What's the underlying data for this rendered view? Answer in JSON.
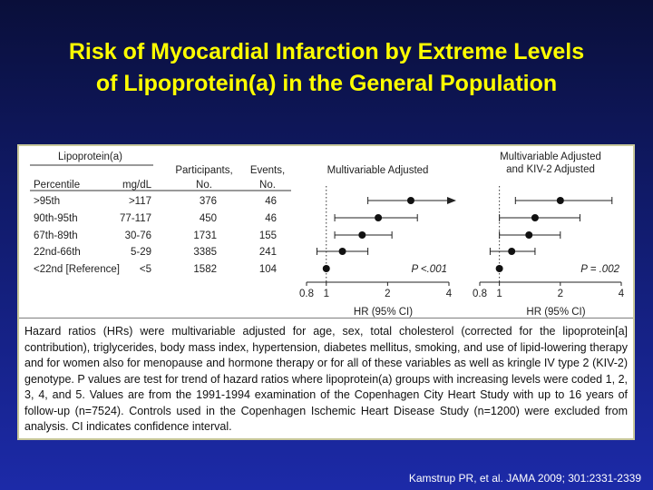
{
  "title_line1": "Risk of Myocardial Infarction by Extreme Levels",
  "title_line2": "of Lipoprotein(a) in the General Population",
  "citation": "Kamstrup PR, et al. JAMA 2009; 301:2331-2339",
  "table": {
    "group_header": "Lipoprotein(a)",
    "col_percentile": "Percentile",
    "col_mgdl": "mg/dL",
    "col_participants": [
      "Participants,",
      "No."
    ],
    "col_events": [
      "Events,",
      "No."
    ],
    "rows": [
      {
        "percentile": ">95th",
        "mgdl": ">117",
        "participants": "376",
        "events": "46"
      },
      {
        "percentile": "90th-95th",
        "mgdl": "77-117",
        "participants": "450",
        "events": "46"
      },
      {
        "percentile": "67th-89th",
        "mgdl": "30-76",
        "participants": "1731",
        "events": "155"
      },
      {
        "percentile": "22nd-66th",
        "mgdl": "5-29",
        "participants": "3385",
        "events": "241"
      },
      {
        "percentile": "<22nd [Reference]",
        "mgdl": "<5",
        "participants": "1582",
        "events": "104"
      }
    ]
  },
  "footnote": "Hazard ratios (HRs) were multivariable adjusted for age, sex, total cholesterol (corrected for the lipoprotein[a] contribution), triglycerides, body mass index, hypertension, diabetes mellitus, smoking, and use of lipid-lowering therapy and for women also for menopause and hormone therapy or for all of these variables as well as kringle IV type 2 (KIV-2) genotype. P values are test for trend of hazard ratios where lipoprotein(a) groups with increasing levels were coded 1, 2, 3, 4, and 5. Values are from the 1991-1994 examination of the Copenhagen City Heart Study with up to 16 years of follow-up (n=7524). Controls used in the Copenhagen Ischemic Heart Disease Study (n=1200) were excluded from analysis. CI indicates confidence interval.",
  "chart_data": [
    {
      "type": "scatter",
      "title": "Multivariable Adjusted",
      "xlabel": "HR (95% CI)",
      "xscale": "log",
      "xlim": [
        0.8,
        4
      ],
      "xticks": [
        "0.8",
        "1",
        "2",
        "4"
      ],
      "reference_line": 1,
      "pvalue": "P <.001",
      "categories": [
        ">95th",
        "90th-95th",
        "67th-89th",
        "22nd-66th",
        "<22nd [Reference]"
      ],
      "hr": [
        2.6,
        1.8,
        1.5,
        1.2,
        1.0
      ],
      "ci_low": [
        1.6,
        1.1,
        1.1,
        0.9,
        1.0
      ],
      "ci_high": [
        4.0,
        2.8,
        2.1,
        1.6,
        1.0
      ],
      "ci_high_arrow": [
        true,
        false,
        false,
        false,
        false
      ]
    },
    {
      "type": "scatter",
      "title": "Multivariable Adjusted and KIV-2 Adjusted",
      "title_lines": [
        "Multivariable Adjusted",
        "and KIV-2 Adjusted"
      ],
      "xlabel": "HR (95% CI)",
      "xscale": "log",
      "xlim": [
        0.8,
        4
      ],
      "xticks": [
        "0.8",
        "1",
        "2",
        "4"
      ],
      "reference_line": 1,
      "pvalue": "P = .002",
      "categories": [
        ">95th",
        "90th-95th",
        "67th-89th",
        "22nd-66th",
        "<22nd [Reference]"
      ],
      "hr": [
        2.0,
        1.5,
        1.4,
        1.15,
        1.0
      ],
      "ci_low": [
        1.2,
        1.0,
        1.0,
        0.9,
        1.0
      ],
      "ci_high": [
        3.6,
        2.5,
        2.0,
        1.5,
        1.0
      ],
      "ci_high_arrow": [
        false,
        false,
        false,
        false,
        false
      ]
    }
  ]
}
